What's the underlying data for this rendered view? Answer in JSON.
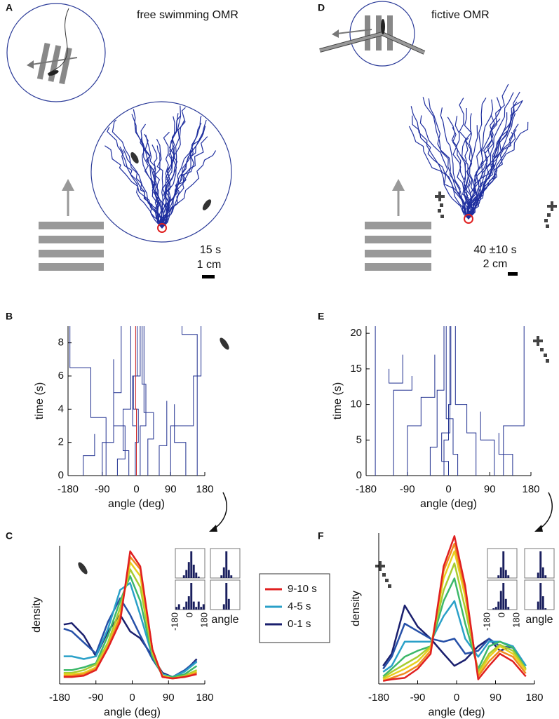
{
  "panel_labels": [
    "A",
    "B",
    "C",
    "D",
    "E",
    "F"
  ],
  "diagrams": [
    {
      "title": "free swimming OMR",
      "duration": "15 s",
      "scale": "1 cm"
    },
    {
      "title": "fictive OMR",
      "duration": "40 ±10 s",
      "scale": "2 cm"
    }
  ],
  "chart_data": [
    {
      "type": "trajectory",
      "xlabel": "angle (deg)",
      "ylabel": "time (s)",
      "xlim": [
        -180,
        180
      ],
      "ylim": [
        0,
        9
      ],
      "xticks": [
        -180,
        -90,
        0,
        90,
        180
      ],
      "yticks": [
        0,
        2,
        4,
        6,
        8
      ],
      "series": [
        {
          "color": "#1f2f8f",
          "x": [
            -3,
            -3,
            5,
            5,
            -8,
            -8,
            2,
            2
          ],
          "values": [
            0,
            2,
            2,
            4,
            4,
            6,
            6,
            9
          ]
        },
        {
          "color": "#1f2f8f",
          "x": [
            10,
            10,
            25,
            25,
            15,
            15
          ],
          "values": [
            0,
            3,
            3,
            5.5,
            5.5,
            9
          ]
        },
        {
          "color": "#1f2f8f",
          "x": [
            -20,
            -20,
            -35,
            -35,
            -15,
            -15
          ],
          "values": [
            0,
            1.5,
            1.5,
            4,
            4,
            9
          ]
        },
        {
          "color": "#1f2f8f",
          "x": [
            30,
            30,
            45,
            45,
            20,
            20
          ],
          "values": [
            0,
            2.2,
            2.2,
            3.8,
            3.8,
            9
          ]
        },
        {
          "color": "#1f2f8f",
          "x": [
            -50,
            -50,
            -30,
            -30,
            -60,
            -60
          ],
          "values": [
            0,
            1,
            1,
            3,
            3,
            7
          ]
        },
        {
          "color": "#1f2f8f",
          "x": [
            60,
            60,
            80,
            80
          ],
          "values": [
            0,
            1.8,
            1.8,
            4.5
          ]
        },
        {
          "color": "#1f2f8f",
          "x": [
            -175,
            -175,
            -120,
            -120,
            -80,
            -80
          ],
          "values": [
            9,
            6.5,
            6.5,
            3.5,
            3.5,
            0
          ]
        },
        {
          "color": "#1f2f8f",
          "x": [
            170,
            170,
            150,
            150,
            90,
            90
          ],
          "values": [
            9,
            6,
            6,
            3,
            3,
            0
          ]
        },
        {
          "color": "#1f2f8f",
          "x": [
            -90,
            -90,
            -60,
            -60,
            -40,
            -40
          ],
          "values": [
            0,
            2,
            2,
            5,
            5,
            9
          ]
        },
        {
          "color": "#1f2f8f",
          "x": [
            0,
            0,
            -10,
            -10,
            10,
            10
          ],
          "values": [
            0,
            3,
            3,
            6,
            6,
            9
          ]
        },
        {
          "color": "#1f2f8f",
          "x": [
            130,
            130,
            100,
            100
          ],
          "values": [
            0,
            2,
            2,
            4.3
          ]
        },
        {
          "color": "#1f2f8f",
          "x": [
            -140,
            -140,
            -110,
            -110
          ],
          "values": [
            0,
            1.2,
            1.2,
            2.5
          ]
        },
        {
          "color": "#1f2f8f",
          "x": [
            120,
            120,
            160,
            160
          ],
          "values": [
            9,
            8.5,
            8.5,
            0
          ]
        },
        {
          "color": "#cc2222",
          "x": [
            0,
            0,
            -2,
            -2
          ],
          "values": [
            0,
            4,
            4,
            9
          ]
        }
      ]
    },
    {
      "type": "trajectory",
      "xlabel": "angle (deg)",
      "ylabel": "time (s)",
      "xlim": [
        -180,
        180
      ],
      "ylim": [
        0,
        21
      ],
      "xticks": [
        -180,
        -90,
        0,
        90,
        180
      ],
      "yticks": [
        0,
        5,
        10,
        15,
        20
      ],
      "series": [
        {
          "color": "#1f2f8f",
          "x": [
            -10,
            -10,
            0,
            0,
            5,
            5
          ],
          "values": [
            0,
            5,
            5,
            10,
            10,
            21
          ]
        },
        {
          "color": "#1f2f8f",
          "x": [
            20,
            20,
            10,
            10,
            -5,
            -5
          ],
          "values": [
            0,
            3,
            3,
            8,
            8,
            21
          ]
        },
        {
          "color": "#1f2f8f",
          "x": [
            -40,
            -40,
            -25,
            -25,
            -10,
            -10
          ],
          "values": [
            0,
            4,
            4,
            12,
            12,
            21
          ]
        },
        {
          "color": "#1f2f8f",
          "x": [
            60,
            60,
            40,
            40,
            15,
            15
          ],
          "values": [
            0,
            6,
            6,
            10,
            10,
            21
          ]
        },
        {
          "color": "#1f2f8f",
          "x": [
            -90,
            -90,
            -60,
            -60,
            -30,
            -30
          ],
          "values": [
            0,
            7,
            7,
            11,
            11,
            17
          ]
        },
        {
          "color": "#1f2f8f",
          "x": [
            100,
            100,
            70,
            70
          ],
          "values": [
            0,
            5,
            5,
            9
          ]
        },
        {
          "color": "#1f2f8f",
          "x": [
            -160,
            -160
          ],
          "values": [
            0,
            21
          ]
        },
        {
          "color": "#1f2f8f",
          "x": [
            165,
            165,
            120,
            120
          ],
          "values": [
            21,
            7,
            7,
            0
          ]
        },
        {
          "color": "#1f2f8f",
          "x": [
            -120,
            -120,
            -80,
            -80
          ],
          "values": [
            0,
            12,
            12,
            14
          ]
        },
        {
          "color": "#1f2f8f",
          "x": [
            0,
            0,
            -15,
            -15,
            3,
            3
          ],
          "values": [
            0,
            2,
            2,
            6,
            6,
            21
          ]
        },
        {
          "color": "#1f2f8f",
          "x": [
            140,
            140,
            110,
            110
          ],
          "values": [
            0,
            3,
            3,
            6
          ]
        },
        {
          "color": "#1f2f8f",
          "x": [
            -130,
            -130,
            -100,
            -100
          ],
          "values": [
            15,
            13,
            13,
            17
          ]
        }
      ]
    },
    {
      "type": "line",
      "xlabel": "angle (deg)",
      "ylabel": "density",
      "xlim": [
        -180,
        180
      ],
      "ylim": [
        0,
        1
      ],
      "xticks": [
        -180,
        -90,
        0,
        90,
        180
      ],
      "x": [
        -170,
        -150,
        -120,
        -90,
        -60,
        -30,
        -5,
        20,
        50,
        75,
        100,
        130,
        160
      ],
      "series": [
        {
          "name": "0-1 s",
          "color": "#1a1f6e",
          "values": [
            0.43,
            0.44,
            0.35,
            0.2,
            0.38,
            0.5,
            0.38,
            0.33,
            0.2,
            0.08,
            0.05,
            0.09,
            0.18
          ]
        },
        {
          "color": "#2650a8",
          "values": [
            0.4,
            0.38,
            0.3,
            0.22,
            0.45,
            0.62,
            0.5,
            0.35,
            0.18,
            0.07,
            0.05,
            0.1,
            0.17
          ]
        },
        {
          "name": "4-5 s",
          "color": "#2aa0c8",
          "values": [
            0.2,
            0.2,
            0.18,
            0.2,
            0.4,
            0.68,
            0.73,
            0.5,
            0.2,
            0.07,
            0.05,
            0.09,
            0.16
          ]
        },
        {
          "color": "#3cb86a",
          "values": [
            0.1,
            0.1,
            0.12,
            0.15,
            0.35,
            0.6,
            0.78,
            0.6,
            0.2,
            0.06,
            0.05,
            0.07,
            0.13
          ]
        },
        {
          "color": "#a8cc30",
          "values": [
            0.08,
            0.08,
            0.1,
            0.14,
            0.3,
            0.55,
            0.83,
            0.7,
            0.22,
            0.06,
            0.04,
            0.06,
            0.1
          ]
        },
        {
          "color": "#e8d020",
          "values": [
            0.07,
            0.07,
            0.08,
            0.12,
            0.28,
            0.5,
            0.88,
            0.78,
            0.24,
            0.06,
            0.04,
            0.05,
            0.09
          ]
        },
        {
          "color": "#f08a20",
          "values": [
            0.06,
            0.06,
            0.07,
            0.11,
            0.27,
            0.48,
            0.92,
            0.83,
            0.25,
            0.05,
            0.04,
            0.05,
            0.08
          ]
        },
        {
          "name": "9-10 s",
          "color": "#e02020",
          "values": [
            0.05,
            0.05,
            0.06,
            0.1,
            0.26,
            0.45,
            0.96,
            0.85,
            0.25,
            0.05,
            0.04,
            0.05,
            0.07
          ]
        }
      ],
      "insets": {
        "xlabel": "angle",
        "xlim": [
          -180,
          180
        ],
        "ylim": [
          0,
          1
        ],
        "xticks": [
          -180,
          0,
          180
        ],
        "bins": [
          -180,
          -150,
          -120,
          -90,
          -60,
          -30,
          0,
          30,
          60,
          90,
          120,
          150,
          180
        ],
        "histograms": [
          {
            "color": "#1a1f5e",
            "values": [
              0,
              0,
              0,
              0.1,
              0.3,
              0.6,
              1,
              0.5,
              0.2,
              0.05,
              0,
              0
            ]
          },
          {
            "color": "#1a1f5e",
            "values": [
              0,
              0,
              0,
              0,
              0.1,
              0.4,
              1,
              0.3,
              0.1,
              0,
              0,
              0
            ]
          },
          {
            "color": "#1a1f5e",
            "values": [
              0.1,
              0.2,
              0,
              0.1,
              0.3,
              0.5,
              1,
              0.3,
              0.1,
              0.3,
              0.1,
              0.2
            ]
          },
          {
            "color": "#1a1f5e",
            "values": [
              0,
              0,
              0,
              0,
              0,
              0.2,
              1,
              0.4,
              0,
              0,
              0,
              0
            ]
          }
        ]
      }
    },
    {
      "type": "line",
      "xlabel": "angle (deg)",
      "ylabel": "density",
      "xlim": [
        -180,
        180
      ],
      "ylim": [
        0,
        1
      ],
      "xticks": [
        -180,
        -90,
        0,
        90,
        180
      ],
      "x": [
        -170,
        -150,
        -120,
        -90,
        -60,
        -30,
        -5,
        20,
        50,
        75,
        100,
        130,
        160
      ],
      "series": [
        {
          "color": "#1a1f6e",
          "values": [
            0.12,
            0.2,
            0.52,
            0.38,
            0.3,
            0.2,
            0.12,
            0.16,
            0.25,
            0.3,
            0.22,
            0.25,
            0.12
          ]
        },
        {
          "color": "#2650a8",
          "values": [
            0.1,
            0.18,
            0.4,
            0.35,
            0.3,
            0.28,
            0.3,
            0.2,
            0.22,
            0.3,
            0.25,
            0.24,
            0.12
          ]
        },
        {
          "color": "#2aa0c8",
          "values": [
            0.08,
            0.12,
            0.28,
            0.28,
            0.28,
            0.45,
            0.55,
            0.3,
            0.18,
            0.28,
            0.28,
            0.25,
            0.12
          ]
        },
        {
          "color": "#3cb86a",
          "values": [
            0.05,
            0.1,
            0.18,
            0.22,
            0.25,
            0.55,
            0.7,
            0.4,
            0.1,
            0.25,
            0.28,
            0.24,
            0.1
          ]
        },
        {
          "color": "#a8cc30",
          "values": [
            0.04,
            0.08,
            0.13,
            0.18,
            0.25,
            0.62,
            0.8,
            0.5,
            0.08,
            0.2,
            0.26,
            0.22,
            0.1
          ]
        },
        {
          "color": "#e8d020",
          "values": [
            0.03,
            0.06,
            0.1,
            0.15,
            0.24,
            0.7,
            0.88,
            0.58,
            0.06,
            0.18,
            0.25,
            0.2,
            0.09
          ]
        },
        {
          "color": "#f08a20",
          "values": [
            0.02,
            0.04,
            0.07,
            0.12,
            0.22,
            0.75,
            0.93,
            0.62,
            0.05,
            0.15,
            0.22,
            0.18,
            0.07
          ]
        },
        {
          "color": "#e02020",
          "values": [
            0.02,
            0.03,
            0.04,
            0.1,
            0.2,
            0.78,
            0.98,
            0.65,
            0.03,
            0.12,
            0.2,
            0.15,
            0.05
          ]
        }
      ],
      "insets": {
        "xlabel": "angle",
        "xlim": [
          -180,
          180
        ],
        "ylim": [
          0,
          1
        ],
        "xticks": [
          -180,
          0,
          180
        ],
        "bins": [
          -180,
          -150,
          -120,
          -90,
          -60,
          -30,
          0,
          30,
          60,
          90,
          120,
          150,
          180
        ],
        "histograms": [
          {
            "color": "#1a1f5e",
            "values": [
              0,
              0,
              0,
              0,
              0.1,
              0.4,
              1,
              0.3,
              0.1,
              0,
              0,
              0
            ]
          },
          {
            "color": "#1a1f5e",
            "values": [
              0,
              0,
              0,
              0,
              0,
              0.2,
              1,
              0.4,
              0.1,
              0,
              0,
              0
            ]
          },
          {
            "color": "#1a1f5e",
            "values": [
              0,
              0,
              0.05,
              0.1,
              0.3,
              0.7,
              1,
              0.4,
              0.1,
              0,
              0,
              0
            ]
          },
          {
            "color": "#1a1f5e",
            "values": [
              0,
              0,
              0,
              0,
              0,
              0.3,
              1,
              0.5,
              0.05,
              0,
              0,
              0
            ]
          }
        ]
      }
    }
  ]
}
